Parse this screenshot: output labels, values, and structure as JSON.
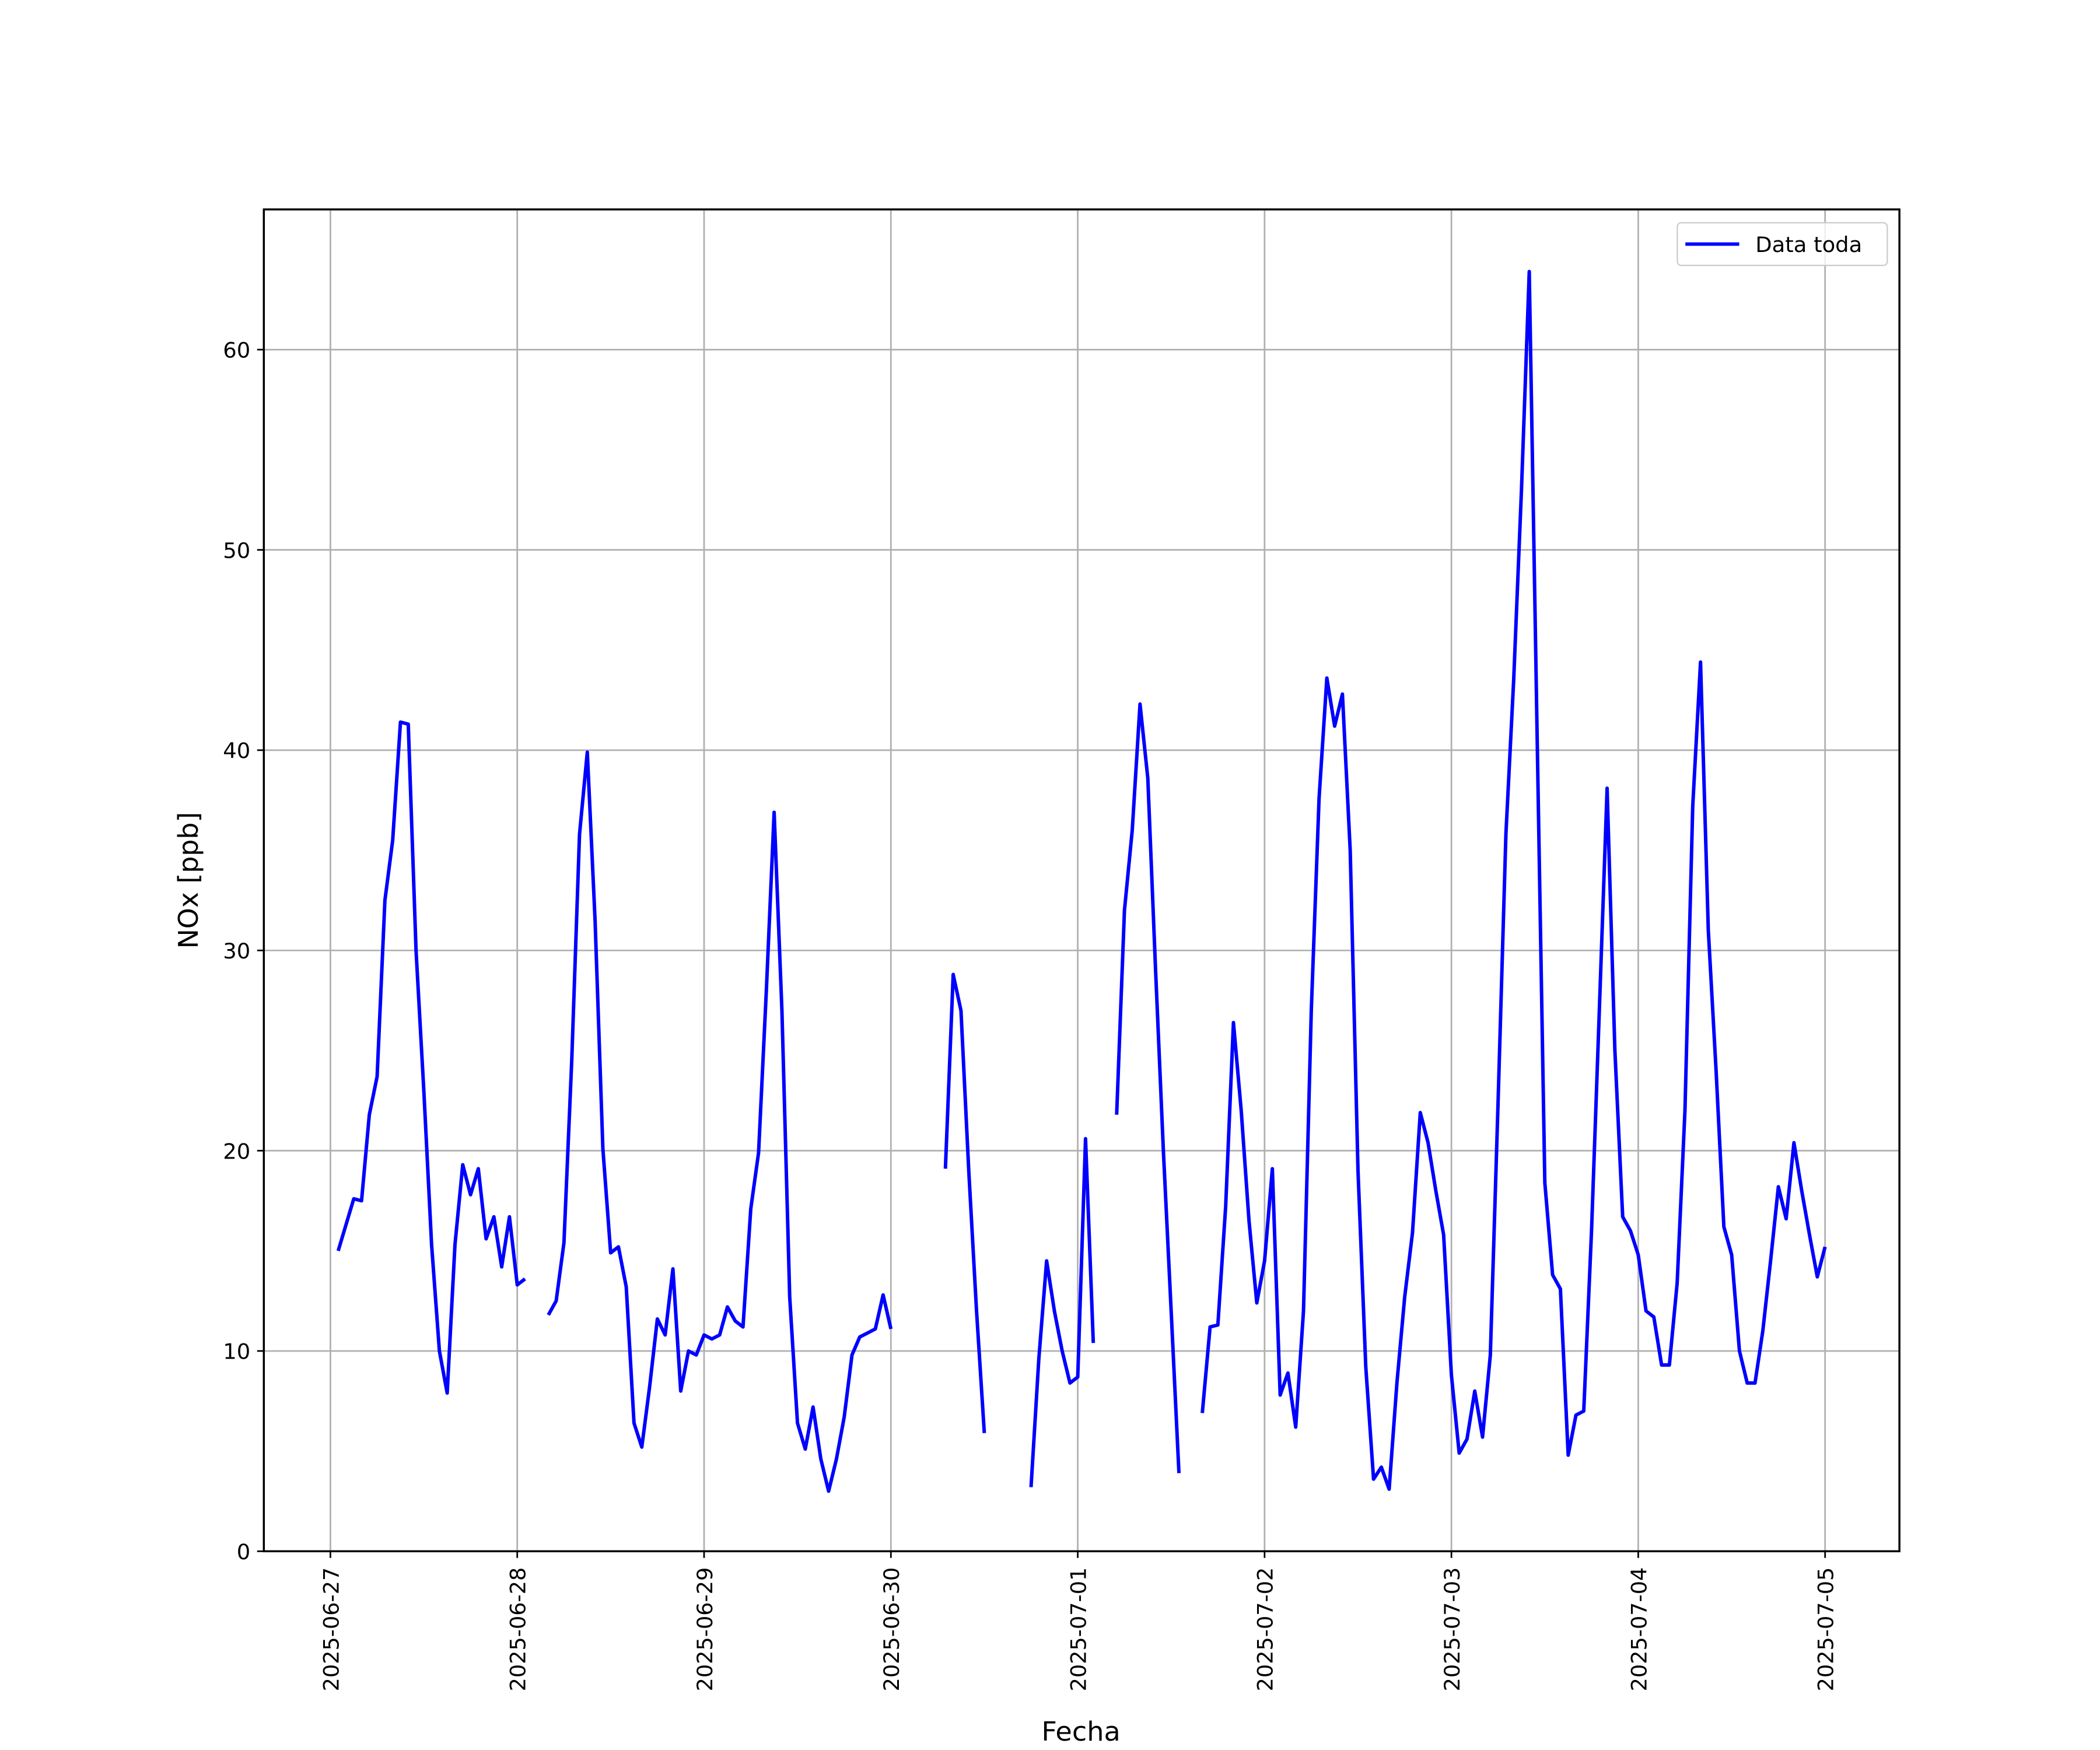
{
  "chart_data": {
    "type": "line",
    "xlabel": "Fecha",
    "ylabel": "NOx [ppb]",
    "x": [
      "2025-06-27T01:00",
      "2025-06-27T02:00",
      "2025-06-27T03:00",
      "2025-06-27T04:00",
      "2025-06-27T05:00",
      "2025-06-27T06:00",
      "2025-06-27T07:00",
      "2025-06-27T08:00",
      "2025-06-27T09:00",
      "2025-06-27T10:00",
      "2025-06-27T11:00",
      "2025-06-27T12:00",
      "2025-06-27T13:00",
      "2025-06-27T14:00",
      "2025-06-27T15:00",
      "2025-06-27T16:00",
      "2025-06-27T17:00",
      "2025-06-27T18:00",
      "2025-06-27T19:00",
      "2025-06-27T20:00",
      "2025-06-27T21:00",
      "2025-06-27T22:00",
      "2025-06-27T23:00",
      "2025-06-28T00:00",
      "2025-06-28T01:00",
      "2025-06-28T02:00",
      "2025-06-28T03:00",
      "2025-06-28T04:00",
      "2025-06-28T05:00",
      "2025-06-28T06:00",
      "2025-06-28T07:00",
      "2025-06-28T08:00",
      "2025-06-28T09:00",
      "2025-06-28T10:00",
      "2025-06-28T11:00",
      "2025-06-28T12:00",
      "2025-06-28T13:00",
      "2025-06-28T14:00",
      "2025-06-28T15:00",
      "2025-06-28T16:00",
      "2025-06-28T17:00",
      "2025-06-28T18:00",
      "2025-06-28T19:00",
      "2025-06-28T20:00",
      "2025-06-28T21:00",
      "2025-06-28T22:00",
      "2025-06-28T23:00",
      "2025-06-29T00:00",
      "2025-06-29T01:00",
      "2025-06-29T02:00",
      "2025-06-29T03:00",
      "2025-06-29T04:00",
      "2025-06-29T05:00",
      "2025-06-29T06:00",
      "2025-06-29T07:00",
      "2025-06-29T08:00",
      "2025-06-29T09:00",
      "2025-06-29T10:00",
      "2025-06-29T11:00",
      "2025-06-29T12:00",
      "2025-06-29T13:00",
      "2025-06-29T14:00",
      "2025-06-29T15:00",
      "2025-06-29T16:00",
      "2025-06-29T17:00",
      "2025-06-29T18:00",
      "2025-06-29T19:00",
      "2025-06-29T20:00",
      "2025-06-29T21:00",
      "2025-06-29T22:00",
      "2025-06-29T23:00",
      "2025-06-30T00:00",
      "2025-06-30T01:00",
      "2025-06-30T02:00",
      "2025-06-30T03:00",
      "2025-06-30T04:00",
      "2025-06-30T05:00",
      "2025-06-30T06:00",
      "2025-06-30T07:00",
      "2025-06-30T08:00",
      "2025-06-30T09:00",
      "2025-06-30T10:00",
      "2025-06-30T11:00",
      "2025-06-30T12:00",
      "2025-06-30T13:00",
      "2025-06-30T14:00",
      "2025-06-30T15:00",
      "2025-06-30T16:00",
      "2025-06-30T17:00",
      "2025-06-30T18:00",
      "2025-06-30T19:00",
      "2025-06-30T20:00",
      "2025-06-30T21:00",
      "2025-06-30T22:00",
      "2025-06-30T23:00",
      "2025-07-01T00:00",
      "2025-07-01T01:00",
      "2025-07-01T02:00",
      "2025-07-01T03:00",
      "2025-07-01T04:00",
      "2025-07-01T05:00",
      "2025-07-01T06:00",
      "2025-07-01T07:00",
      "2025-07-01T08:00",
      "2025-07-01T09:00",
      "2025-07-01T10:00",
      "2025-07-01T11:00",
      "2025-07-01T12:00",
      "2025-07-01T13:00",
      "2025-07-01T14:00",
      "2025-07-01T15:00",
      "2025-07-01T16:00",
      "2025-07-01T17:00",
      "2025-07-01T18:00",
      "2025-07-01T19:00",
      "2025-07-01T20:00",
      "2025-07-01T21:00",
      "2025-07-01T22:00",
      "2025-07-01T23:00",
      "2025-07-02T00:00",
      "2025-07-02T01:00",
      "2025-07-02T02:00",
      "2025-07-02T03:00",
      "2025-07-02T04:00",
      "2025-07-02T05:00",
      "2025-07-02T06:00",
      "2025-07-02T07:00",
      "2025-07-02T08:00",
      "2025-07-02T09:00",
      "2025-07-02T10:00",
      "2025-07-02T11:00",
      "2025-07-02T12:00",
      "2025-07-02T13:00",
      "2025-07-02T14:00",
      "2025-07-02T15:00",
      "2025-07-02T16:00",
      "2025-07-02T17:00",
      "2025-07-02T18:00",
      "2025-07-02T19:00",
      "2025-07-02T20:00",
      "2025-07-02T21:00",
      "2025-07-02T22:00",
      "2025-07-02T23:00",
      "2025-07-03T00:00",
      "2025-07-03T01:00",
      "2025-07-03T02:00",
      "2025-07-03T03:00",
      "2025-07-03T04:00",
      "2025-07-03T05:00",
      "2025-07-03T06:00",
      "2025-07-03T07:00",
      "2025-07-03T08:00",
      "2025-07-03T09:00",
      "2025-07-03T10:00",
      "2025-07-03T11:00",
      "2025-07-03T12:00",
      "2025-07-03T13:00",
      "2025-07-03T14:00",
      "2025-07-03T15:00",
      "2025-07-03T16:00",
      "2025-07-03T17:00",
      "2025-07-03T18:00",
      "2025-07-03T19:00",
      "2025-07-03T20:00",
      "2025-07-03T21:00",
      "2025-07-03T22:00",
      "2025-07-03T23:00",
      "2025-07-04T00:00",
      "2025-07-04T01:00",
      "2025-07-04T02:00",
      "2025-07-04T03:00",
      "2025-07-04T04:00",
      "2025-07-04T05:00",
      "2025-07-04T06:00",
      "2025-07-04T07:00",
      "2025-07-04T08:00",
      "2025-07-04T09:00",
      "2025-07-04T10:00",
      "2025-07-04T11:00",
      "2025-07-04T12:00",
      "2025-07-04T13:00",
      "2025-07-04T14:00",
      "2025-07-04T15:00",
      "2025-07-04T16:00",
      "2025-07-04T17:00",
      "2025-07-04T18:00",
      "2025-07-04T19:00",
      "2025-07-04T20:00",
      "2025-07-04T21:00",
      "2025-07-04T22:00",
      "2025-07-04T23:00",
      "2025-07-05T00:00"
    ],
    "series": [
      {
        "name": "Data toda",
        "color": "#0000ff",
        "values": [
          15.0,
          16.3,
          17.6,
          17.5,
          21.8,
          23.7,
          32.5,
          35.5,
          41.4,
          41.3,
          30,
          23,
          15.3,
          10,
          7.9,
          15.3,
          19.3,
          17.8,
          19.1,
          15.6,
          16.7,
          14.2,
          16.7,
          13.3,
          13.6,
          null,
          null,
          11.8,
          12.5,
          15.4,
          24.5,
          35.8,
          39.9,
          31.5,
          20.1,
          14.9,
          15.2,
          13.2,
          6.4,
          5.2,
          8.2,
          11.6,
          10.8,
          14.1,
          8.0,
          10.0,
          9.8,
          10.8,
          10.6,
          10.8,
          12.2,
          11.5,
          11.2,
          17.1,
          19.9,
          28,
          36.9,
          27,
          12.7,
          6.4,
          5.1,
          7.2,
          4.6,
          3.0,
          4.6,
          6.7,
          9.8,
          10.7,
          10.9,
          11.1,
          12.8,
          11.1,
          null,
          null,
          null,
          null,
          null,
          null,
          19.1,
          28.8,
          27.0,
          19,
          12,
          5.9,
          null,
          null,
          null,
          null,
          null,
          3.2,
          9.6,
          14.5,
          12,
          10,
          8.4,
          8.7,
          20.6,
          10.4,
          null,
          null,
          21.8,
          32,
          36,
          42.3,
          38.6,
          29,
          20,
          12,
          3.9,
          null,
          null,
          6.9,
          11.2,
          11.3,
          17.2,
          26.4,
          22,
          16.5,
          12.4,
          14.5,
          19.1,
          7.8,
          8.9,
          6.2,
          12,
          27,
          37.6,
          43.6,
          41.2,
          42.8,
          35,
          19,
          9.2,
          3.6,
          4.2,
          3.1,
          8.4,
          12.7,
          15.9,
          21.9,
          20.4,
          18,
          15.8,
          8.8,
          4.9,
          5.6,
          8.0,
          5.7,
          9.8,
          22.5,
          35.8,
          43.5,
          53,
          63.9,
          41,
          18.4,
          13.8,
          13.1,
          4.8,
          6.8,
          7.0,
          16,
          27,
          38.1,
          25,
          16.7,
          16,
          14.8,
          12,
          11.7,
          9.3,
          9.3,
          13.4,
          22,
          37.2,
          44.4,
          31,
          24,
          16.2,
          14.8,
          10,
          8.4,
          8.4,
          11,
          14.5,
          18.2,
          16.6,
          20.4,
          18,
          15.8,
          13.7,
          15.2
        ]
      }
    ],
    "xlim": [
      "2025-06-26T15:27",
      "2025-07-05T09:33"
    ],
    "xticks": [
      "2025-06-27",
      "2025-06-28",
      "2025-06-29",
      "2025-06-30",
      "2025-07-01",
      "2025-07-02",
      "2025-07-03",
      "2025-07-04",
      "2025-07-05"
    ],
    "ylim": [
      0,
      67
    ],
    "yticks": [
      0,
      10,
      20,
      30,
      40,
      50,
      60
    ],
    "grid": true,
    "legend": "upper right"
  }
}
